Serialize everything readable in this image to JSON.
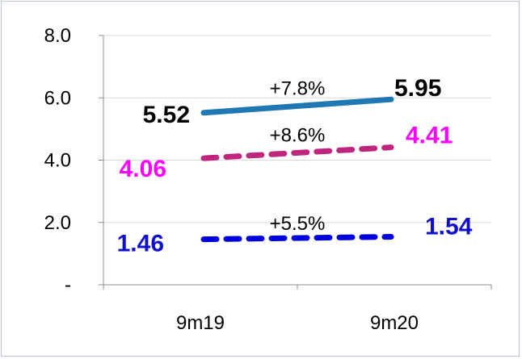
{
  "chart_data": {
    "type": "line",
    "categories": [
      "9m19",
      "9m20"
    ],
    "ylim": [
      0,
      8
    ],
    "y_ticks": [
      "-",
      "2.0",
      "4.0",
      "6.0",
      "8.0"
    ],
    "grid": true,
    "legend": "none",
    "series": [
      {
        "values": [
          5.52,
          5.95
        ],
        "labels": [
          "5.52",
          "5.95"
        ],
        "change_label": "+7.8%",
        "color": "#1f77b4",
        "label_color": "#000000",
        "line_style": "solid"
      },
      {
        "values": [
          4.06,
          4.41
        ],
        "labels": [
          "4.06",
          "4.41"
        ],
        "change_label": "+8.6%",
        "color": "#c0267e",
        "label_color": "#ff00ff",
        "line_style": "dashed"
      },
      {
        "values": [
          1.46,
          1.54
        ],
        "labels": [
          "1.46",
          "1.54"
        ],
        "change_label": "+5.5%",
        "color": "#0000dd",
        "label_color": "#1010cc",
        "line_style": "dashed"
      }
    ]
  }
}
